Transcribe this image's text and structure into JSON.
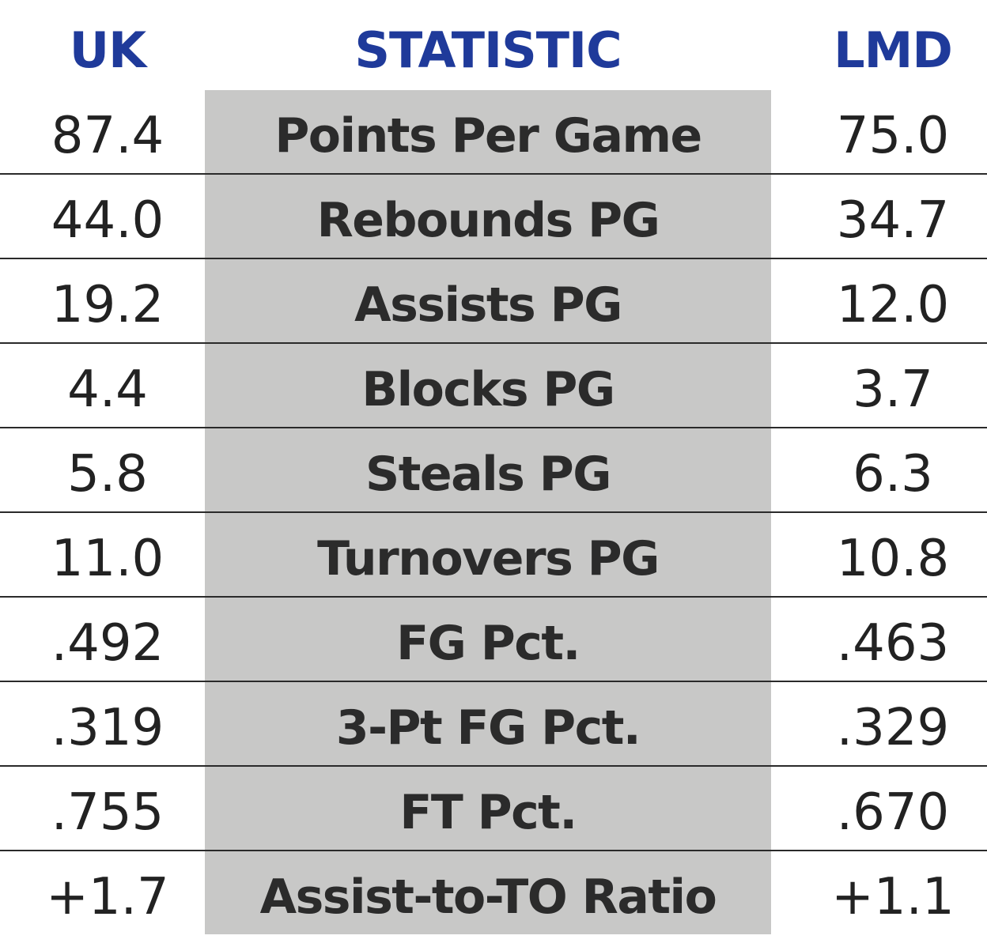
{
  "header": {
    "left": "UK",
    "middle": "STATISTIC",
    "right": "LMD"
  },
  "rows": [
    {
      "uk": "87.4",
      "stat": "Points Per Game",
      "lmd": "75.0"
    },
    {
      "uk": "44.0",
      "stat": "Rebounds PG",
      "lmd": "34.7"
    },
    {
      "uk": "19.2",
      "stat": "Assists PG",
      "lmd": "12.0"
    },
    {
      "uk": "4.4",
      "stat": "Blocks PG",
      "lmd": "3.7"
    },
    {
      "uk": "5.8",
      "stat": "Steals PG",
      "lmd": "6.3"
    },
    {
      "uk": "11.0",
      "stat": "Turnovers PG",
      "lmd": "10.8"
    },
    {
      "uk": ".492",
      "stat": "FG Pct.",
      "lmd": ".463"
    },
    {
      "uk": ".319",
      "stat": "3-Pt FG Pct.",
      "lmd": ".329"
    },
    {
      "uk": ".755",
      "stat": "FT Pct.",
      "lmd": ".670"
    },
    {
      "uk": "+1.7",
      "stat": "Assist-to-TO Ratio",
      "lmd": "+1.1"
    }
  ],
  "colors": {
    "header_text": "#1f3a9a",
    "stat_column_bg": "#c8c8c7",
    "body_text": "#222222",
    "rule": "#2a2a2a"
  }
}
